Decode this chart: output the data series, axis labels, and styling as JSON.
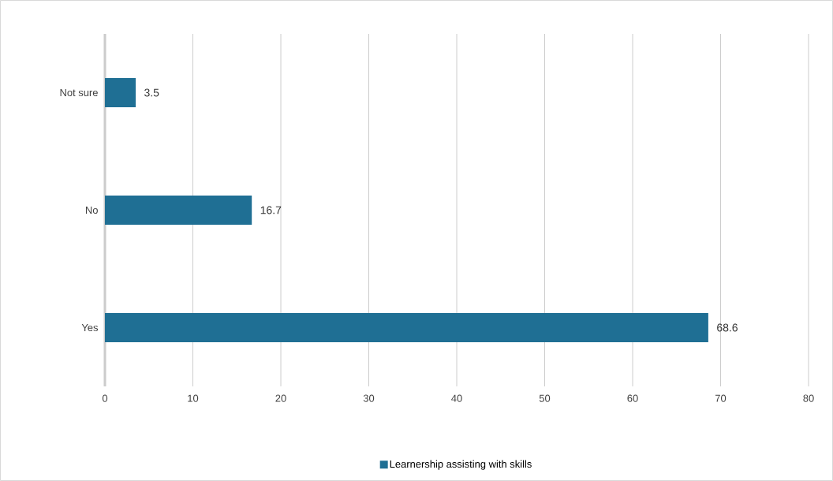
{
  "chart_data": {
    "type": "bar",
    "orientation": "horizontal",
    "categories": [
      "Not sure",
      "No",
      "Yes"
    ],
    "series": [
      {
        "name": "Learnership assisting with skills",
        "color": "#1f6f94",
        "values": [
          3.5,
          16.7,
          68.6
        ]
      }
    ],
    "xlim": [
      0,
      80
    ],
    "xticks": [
      0,
      10,
      20,
      30,
      40,
      50,
      60,
      70,
      80
    ],
    "grid": "x",
    "legend": "bottom",
    "data_labels": true
  }
}
